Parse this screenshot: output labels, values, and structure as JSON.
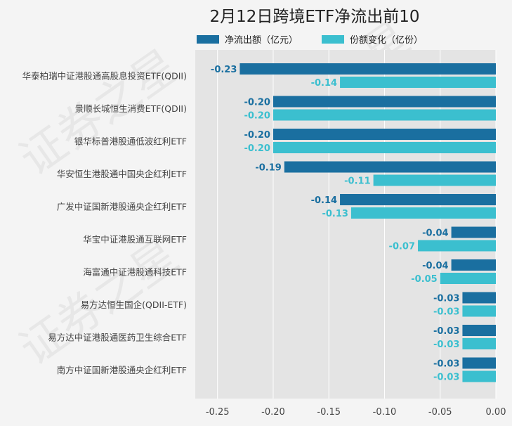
{
  "chart_data": {
    "type": "bar",
    "orientation": "horizontal",
    "title": "2月12日跨境ETF净流出前10",
    "categories": [
      "华泰柏瑞中证港股通高股息投资ETF(QDII)",
      "景顺长城恒生消费ETF(QDII)",
      "银华标普港股通低波红利ETF",
      "华安恒生港股通中国央企红利ETF",
      "广发中证国新港股通央企红利ETF",
      "华宝中证港股通互联网ETF",
      "海富通中证港股通科技ETF",
      "易方达恒生国企(QDII-ETF)",
      "易方达中证港股通医药卫生综合ETF",
      "南方中证国新港股通央企红利ETF"
    ],
    "series": [
      {
        "name": "净流出额（亿元）",
        "color": "#1a6fa0",
        "values": [
          -0.23,
          -0.2,
          -0.2,
          -0.19,
          -0.14,
          -0.04,
          -0.04,
          -0.03,
          -0.03,
          -0.03
        ],
        "labels": [
          "-0.23",
          "-0.20",
          "-0.20",
          "-0.19",
          "-0.14",
          "-0.04",
          "-0.04",
          "-0.03",
          "-0.03",
          "-0.03"
        ]
      },
      {
        "name": "份额变化（亿份）",
        "color": "#3bbfcf",
        "values": [
          -0.14,
          -0.2,
          -0.2,
          -0.11,
          -0.13,
          -0.07,
          -0.05,
          -0.03,
          -0.03,
          -0.03
        ],
        "labels": [
          "-0.14",
          "-0.20",
          "-0.20",
          "-0.11",
          "-0.13",
          "-0.07",
          "-0.05",
          "-0.03",
          "-0.03",
          "-0.03"
        ]
      }
    ],
    "xlim": [
      -0.27,
      0.0
    ],
    "xticks": [
      -0.25,
      -0.2,
      -0.15,
      -0.1,
      -0.05,
      0.0
    ],
    "xtick_labels": [
      "-0.25",
      "-0.20",
      "-0.15",
      "-0.10",
      "-0.05",
      "0.00"
    ],
    "grid": true,
    "legend_position": "top"
  },
  "watermark": {
    "text": "证券之星"
  }
}
